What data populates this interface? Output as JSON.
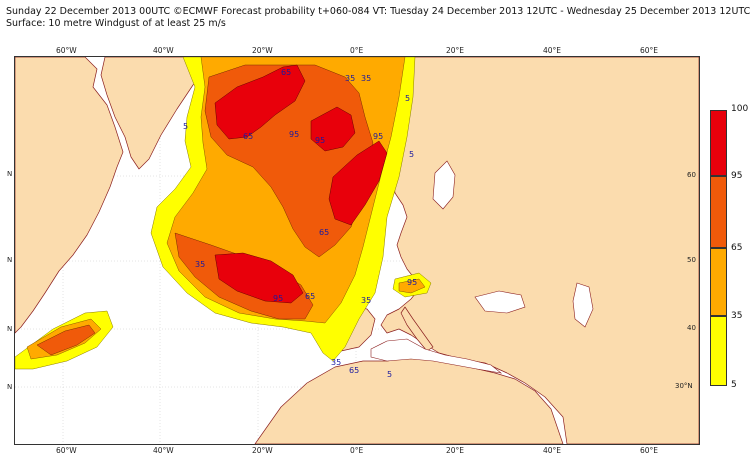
{
  "header": {
    "line1": "Sunday 22 December 2013 00UTC ©ECMWF Forecast probability t+060-084 VT: Tuesday 24 December 2013 12UTC - Wednesday 25 December 2013 12UTC",
    "line2": "Surface: 10 metre Windgust of at least 25 m/s"
  },
  "map": {
    "top_longitude_labels": [
      "60°W",
      "40°W",
      "20°W",
      "0°E",
      "20°E",
      "40°E",
      "60°E"
    ],
    "bottom_longitude_labels": [
      "60°W",
      "40°W",
      "20°W",
      "0°E",
      "20°E",
      "40°E",
      "60°E"
    ],
    "left_latitude_labels": [
      "N",
      "N",
      "N",
      "N"
    ],
    "right_latitude_labels": [
      "60",
      "50",
      "40",
      "30°N"
    ],
    "contour_labels": [
      "65",
      "35",
      "5",
      "35",
      "65",
      "95",
      "95",
      "95",
      "95",
      "65",
      "35",
      "65",
      "95",
      "65",
      "35",
      "5",
      "5",
      "35",
      "5"
    ],
    "colors": {
      "ocean": "#ffffff",
      "land": "#fbdcae",
      "coast": "#8b1f1f"
    }
  },
  "colorbar": {
    "levels": [
      "100",
      "95",
      "65",
      "35",
      "5"
    ],
    "colors": {
      "95_100": "#e8000b",
      "65_95": "#f05a0a",
      "35_65": "#ffaa00",
      "5_35": "#ffff00"
    }
  }
}
